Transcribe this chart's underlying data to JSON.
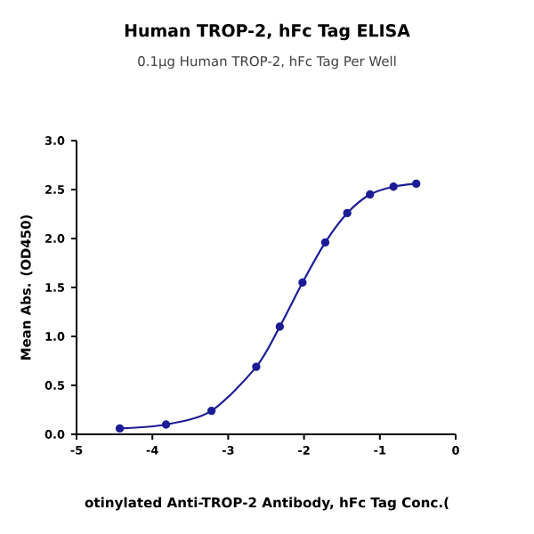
{
  "chart_data": {
    "type": "line",
    "title": "Human TROP-2, hFc Tag ELISA",
    "subtitle": "0.1µg Human TROP-2, hFc Tag Per Well",
    "xlabel": "otinylated Anti-TROP-2 Antibody, hFc Tag Conc.(",
    "ylabel": "Mean Abs. (OD450)",
    "x": [
      -4.43,
      -3.82,
      -3.22,
      -2.63,
      -2.32,
      -2.02,
      -1.72,
      -1.43,
      -1.13,
      -0.82,
      -0.52
    ],
    "series": [
      {
        "color": "#1c1c96",
        "values": [
          0.06,
          0.1,
          0.24,
          0.69,
          1.1,
          1.55,
          1.96,
          2.26,
          2.45,
          2.53,
          2.56
        ]
      }
    ],
    "xlim": [
      -5,
      0
    ],
    "xticks": [
      -5,
      -4,
      -3,
      -2,
      -1,
      0
    ],
    "ylim": [
      0,
      3
    ],
    "yticks": [
      {
        "value": 0,
        "label": "0.0"
      },
      0.5,
      {
        "value": 1,
        "label": "1.0"
      },
      1.5,
      {
        "value": 2,
        "label": "2.0"
      },
      2.5,
      {
        "value": 3,
        "label": "3.0"
      }
    ],
    "marker": "circle",
    "line_style": "solid",
    "grid": false
  }
}
